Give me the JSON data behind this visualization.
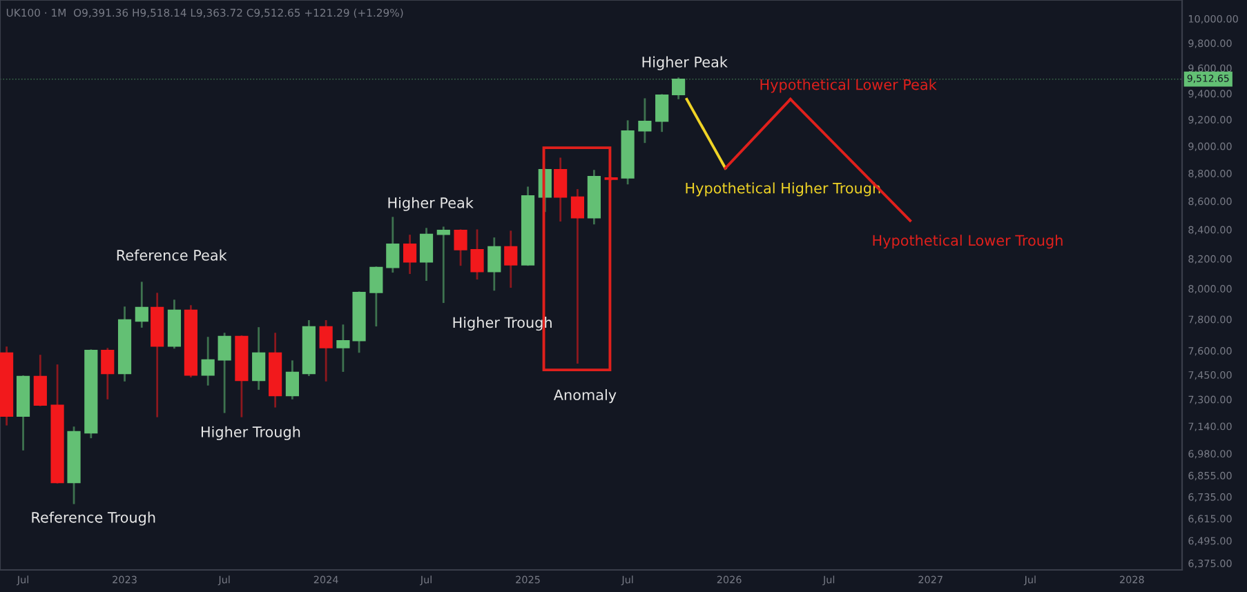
{
  "chart_data": {
    "type": "candlestick",
    "x": [
      "2022-06",
      "2022-07",
      "2022-08",
      "2022-09",
      "2022-10",
      "2022-11",
      "2022-12",
      "2023-01",
      "2023-02",
      "2023-03",
      "2023-04",
      "2023-05",
      "2023-06",
      "2023-07",
      "2023-08",
      "2023-09",
      "2023-10",
      "2023-11",
      "2023-12",
      "2024-01",
      "2024-02",
      "2024-03",
      "2024-04",
      "2024-05",
      "2024-06",
      "2024-07",
      "2024-08",
      "2024-09",
      "2024-10",
      "2024-11",
      "2024-12",
      "2025-01",
      "2025-02",
      "2025-03",
      "2025-04",
      "2025-05",
      "2025-06",
      "2025-07",
      "2025-08",
      "2025-09",
      "2025-10"
    ],
    "ohlc": [
      [
        7585,
        7620,
        7150,
        7199
      ],
      [
        7199,
        7440,
        7004,
        7440
      ],
      [
        7440,
        7568,
        7265,
        7265
      ],
      [
        7265,
        7508,
        6815,
        6815
      ],
      [
        6815,
        7132,
        6700,
        7108
      ],
      [
        7100,
        7602,
        7075,
        7602
      ],
      [
        7602,
        7611,
        7306,
        7457
      ],
      [
        7457,
        7876,
        7415,
        7796
      ],
      [
        7788,
        8039,
        7752,
        7876
      ],
      [
        7876,
        7966,
        7199,
        7628
      ],
      [
        7628,
        7921,
        7619,
        7858
      ],
      [
        7858,
        7885,
        7440,
        7448
      ],
      [
        7448,
        7681,
        7390,
        7542
      ],
      [
        7542,
        7707,
        7224,
        7690
      ],
      [
        7690,
        7690,
        7199,
        7415
      ],
      [
        7415,
        7743,
        7364,
        7585
      ],
      [
        7585,
        7707,
        7257,
        7323
      ],
      [
        7323,
        7533,
        7306,
        7465
      ],
      [
        7457,
        7788,
        7448,
        7752
      ],
      [
        7752,
        7788,
        7415,
        7619
      ],
      [
        7619,
        7760,
        7474,
        7663
      ],
      [
        7663,
        7975,
        7593,
        7975
      ],
      [
        7975,
        8141,
        7760,
        8141
      ],
      [
        8141,
        8482,
        8113,
        8300
      ],
      [
        8300,
        8358,
        8104,
        8178
      ],
      [
        8178,
        8405,
        8058,
        8367
      ],
      [
        8367,
        8414,
        7912,
        8395
      ],
      [
        8395,
        8395,
        8159,
        8262
      ],
      [
        8262,
        8395,
        8067,
        8113
      ],
      [
        8113,
        8339,
        7993,
        8282
      ],
      [
        8282,
        8386,
        8012,
        8159
      ],
      [
        8159,
        8697,
        8159,
        8638
      ],
      [
        8629,
        8827,
        8530,
        8827
      ],
      [
        8827,
        8908,
        8463,
        8629
      ],
      [
        8629,
        8679,
        7525,
        8482
      ],
      [
        8482,
        8818,
        8443,
        8777
      ],
      [
        8767,
        8767,
        8756,
        8756
      ],
      [
        8767,
        9187,
        8727,
        9114
      ],
      [
        9114,
        9356,
        9031,
        9187
      ],
      [
        9187,
        9388,
        9114,
        9388
      ],
      [
        9391.36,
        9518.14,
        9363.72,
        9512.65
      ]
    ],
    "colors": [
      "#f2191c",
      "#63c074",
      "#f2191c",
      "#f2191c",
      "#63c074",
      "#63c074",
      "#f2191c",
      "#63c074",
      "#63c074",
      "#f2191c",
      "#63c074",
      "#f2191c",
      "#63c074",
      "#63c074",
      "#f2191c",
      "#63c074",
      "#f2191c",
      "#63c074",
      "#63c074",
      "#f2191c",
      "#63c074",
      "#63c074",
      "#63c074",
      "#63c074",
      "#f2191c",
      "#63c074",
      "#63c074",
      "#f2191c",
      "#f2191c",
      "#63c074",
      "#f2191c",
      "#63c074",
      "#63c074",
      "#f2191c",
      "#f2191c",
      "#63c074",
      "#f2191c",
      "#63c074",
      "#63c074",
      "#63c074",
      "#63c074"
    ],
    "series": [
      {
        "type": "line",
        "name": "Hypothetical Higher Trough",
        "color": "#f0d426",
        "x": [
          "2025-10-16",
          "2025-12-25"
        ],
        "values": [
          9356,
          8837
        ]
      },
      {
        "type": "line",
        "name": "Hypothetical Lower Peak",
        "color": "#e0201c",
        "x": [
          "2025-12-25",
          "2026-04-22"
        ],
        "values": [
          8837,
          9356
        ]
      },
      {
        "type": "line",
        "name": "Hypothetical Lower Trough",
        "color": "#e0201c",
        "x": [
          "2026-04-22",
          "2026-11-25"
        ],
        "values": [
          9356,
          8463
        ]
      }
    ],
    "annotations": [
      "UK100 · 1M  O9,391.36 H9,518.14 L9,363.72 C9,512.65 +121.29 (+1.29%)",
      "Reference Trough",
      "Reference Peak",
      "Higher Trough",
      "Higher Peak",
      "Higher Trough",
      "Anomaly",
      "Higher Peak"
    ],
    "ref_lines": [
      {
        "axis": "y",
        "value": 9512.65,
        "label": "9,512.65",
        "color": "#63c074",
        "line_style": "dotted"
      }
    ],
    "log": "y",
    "xlim": [
      "2022-05-20",
      "2028-04-01"
    ],
    "xticks": [
      {
        "value": "2022-07",
        "label": "Jul"
      },
      {
        "value": "2023-01",
        "label": "2023"
      },
      {
        "value": "2023-07",
        "label": "Jul"
      },
      {
        "value": "2024-01",
        "label": "2024"
      },
      {
        "value": "2024-07",
        "label": "Jul"
      },
      {
        "value": "2025-01",
        "label": "2025"
      },
      {
        "value": "2025-07",
        "label": "Jul"
      },
      {
        "value": "2026-01",
        "label": "2026"
      },
      {
        "value": "2026-07",
        "label": "Jul"
      },
      {
        "value": "2027-01",
        "label": "2027"
      },
      {
        "value": "2027-07",
        "label": "Jul"
      },
      {
        "value": "2028-01",
        "label": "2028"
      }
    ],
    "ylim": [
      6340,
      10156
    ],
    "yticks": [
      {
        "value": 6375,
        "label": "6,375.00"
      },
      {
        "value": 6495,
        "label": "6,495.00"
      },
      {
        "value": 6615,
        "label": "6,615.00"
      },
      {
        "value": 6735,
        "label": "6,735.00"
      },
      {
        "value": 6855,
        "label": "6,855.00"
      },
      {
        "value": 6980,
        "label": "6,980.00"
      },
      {
        "value": 7140,
        "label": "7,140.00"
      },
      {
        "value": 7300,
        "label": "7,300.00"
      },
      {
        "value": 7450,
        "label": "7,450.00"
      },
      {
        "value": 7600,
        "label": "7,600.00"
      },
      {
        "value": 7800,
        "label": "7,800.00"
      },
      {
        "value": 8000,
        "label": "8,000.00"
      },
      {
        "value": 8200,
        "label": "8,200.00"
      },
      {
        "value": 8400,
        "label": "8,400.00"
      },
      {
        "value": 8600,
        "label": "8,600.00"
      },
      {
        "value": 8800,
        "label": "8,800.00"
      },
      {
        "value": 9000,
        "label": "9,000.00"
      },
      {
        "value": 9200,
        "label": "9,200.00"
      },
      {
        "value": 9400,
        "label": "9,400.00"
      },
      {
        "value": 9600,
        "label": "9,600.00"
      },
      {
        "value": 9800,
        "label": "9,800.00"
      },
      {
        "value": 10000,
        "label": "10,000.00"
      }
    ],
    "grid": false,
    "legend": false
  }
}
